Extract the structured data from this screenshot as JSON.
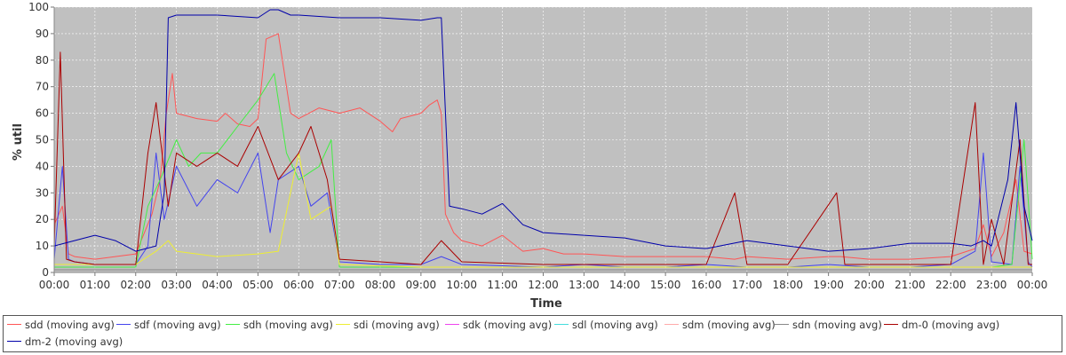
{
  "chart_data": {
    "type": "line",
    "title": "",
    "xlabel": "Time",
    "ylabel": "% util",
    "ylim": [
      0,
      100
    ],
    "xlim": [
      0,
      24
    ],
    "y_ticks": [
      "0",
      "10",
      "20",
      "30",
      "40",
      "50",
      "60",
      "70",
      "80",
      "90",
      "100"
    ],
    "x_ticks": [
      "00:00",
      "01:00",
      "02:00",
      "03:00",
      "04:00",
      "05:00",
      "06:00",
      "07:00",
      "08:00",
      "09:00",
      "10:00",
      "11:00",
      "12:00",
      "13:00",
      "14:00",
      "15:00",
      "16:00",
      "17:00",
      "18:00",
      "19:00",
      "20:00",
      "21:00",
      "22:00",
      "23:00",
      "00:00"
    ],
    "grid": true,
    "legend_placement": "bottom",
    "plot_background": "#c0c0c0",
    "series": [
      {
        "name": "sdd (moving avg)",
        "color": "#ff5555",
        "x": [
          0,
          0.2,
          0.35,
          0.5,
          1,
          1.5,
          2,
          2.4,
          2.6,
          2.75,
          2.9,
          3,
          3.5,
          4,
          4.2,
          4.5,
          4.8,
          5,
          5.2,
          5.5,
          5.6,
          5.8,
          6,
          6.5,
          7,
          7.5,
          8,
          8.3,
          8.5,
          9,
          9.2,
          9.4,
          9.5,
          9.6,
          9.8,
          10,
          10.5,
          11,
          11.5,
          12,
          12.5,
          13,
          14,
          15,
          16,
          16.7,
          17,
          18,
          19,
          19.3,
          20,
          21,
          22,
          22.6,
          22.8,
          23,
          23.3,
          23.6,
          23.8,
          24
        ],
        "y": [
          18,
          25,
          7,
          6,
          5,
          6,
          7,
          22,
          35,
          60,
          75,
          60,
          58,
          57,
          60,
          56,
          55,
          58,
          88,
          90,
          80,
          60,
          58,
          62,
          60,
          62,
          57,
          53,
          58,
          60,
          63,
          65,
          60,
          22,
          15,
          12,
          10,
          14,
          8,
          9,
          7,
          7,
          6,
          6,
          6,
          5,
          6,
          5,
          6,
          6,
          5,
          5,
          6,
          9,
          18,
          6,
          15,
          35,
          8,
          7
        ]
      },
      {
        "name": "sdf (moving avg)",
        "color": "#4444ee",
        "x": [
          0,
          0.2,
          0.35,
          0.5,
          1,
          2,
          2.3,
          2.5,
          2.7,
          3,
          3.5,
          4,
          4.5,
          5,
          5.3,
          5.5,
          6,
          6.3,
          6.7,
          7,
          8,
          9,
          9.5,
          10,
          12,
          13,
          14,
          15,
          16,
          17,
          18,
          19,
          20,
          21,
          22,
          22.6,
          22.8,
          23,
          23.5,
          23.7,
          23.9,
          24
        ],
        "y": [
          5,
          40,
          5,
          4,
          3,
          3,
          10,
          45,
          20,
          40,
          25,
          35,
          30,
          45,
          15,
          35,
          40,
          25,
          30,
          4,
          3,
          3,
          6,
          3,
          2,
          3,
          2,
          2,
          3,
          2,
          2,
          3,
          2,
          2,
          3,
          8,
          45,
          4,
          3,
          40,
          4,
          2
        ]
      },
      {
        "name": "sdh (moving avg)",
        "color": "#44ee44",
        "x": [
          0,
          2,
          2.3,
          2.6,
          3,
          3.3,
          3.6,
          4,
          4.5,
          5,
          5.4,
          5.7,
          6,
          6.5,
          6.8,
          7,
          8,
          9,
          10,
          12,
          14,
          16,
          18,
          20,
          22,
          23,
          23.5,
          23.8,
          24
        ],
        "y": [
          2,
          2,
          25,
          35,
          50,
          40,
          45,
          45,
          55,
          65,
          75,
          45,
          35,
          40,
          50,
          2,
          2,
          2,
          2,
          2,
          2,
          2,
          2,
          2,
          2,
          2,
          3,
          50,
          5
        ]
      },
      {
        "name": "sdi (moving avg)",
        "color": "#eeee33",
        "x": [
          0,
          2,
          2.5,
          2.8,
          3,
          4,
          5,
          5.5,
          6,
          6.3,
          6.8,
          7,
          9,
          10,
          12,
          14,
          16,
          18,
          20,
          22,
          24
        ],
        "y": [
          3,
          3,
          8,
          12,
          8,
          6,
          7,
          8,
          45,
          20,
          25,
          3,
          2,
          2,
          2,
          2,
          2,
          2,
          2,
          2,
          2
        ]
      },
      {
        "name": "sdk (moving avg)",
        "color": "#ee44ee",
        "x": [
          0,
          24
        ],
        "y": [
          1,
          1
        ]
      },
      {
        "name": "sdl (moving avg)",
        "color": "#44dddd",
        "x": [
          0,
          24
        ],
        "y": [
          1,
          1
        ]
      },
      {
        "name": "sdm (moving avg)",
        "color": "#ffaaaa",
        "x": [
          0,
          24
        ],
        "y": [
          1,
          1
        ]
      },
      {
        "name": "sdn (moving avg)",
        "color": "#888888",
        "x": [
          0,
          24
        ],
        "y": [
          1,
          1
        ]
      },
      {
        "name": "dm-0 (moving avg)",
        "color": "#aa0000",
        "x": [
          0,
          0.15,
          0.3,
          0.5,
          1,
          2,
          2.3,
          2.5,
          2.8,
          3,
          3.5,
          4,
          4.5,
          5,
          5.5,
          6,
          6.3,
          6.7,
          7,
          8,
          9,
          9.5,
          10,
          12,
          14,
          16,
          16.7,
          17,
          18,
          19.2,
          19.4,
          20,
          22,
          22.6,
          22.8,
          23,
          23.3,
          23.7,
          23.9,
          24
        ],
        "y": [
          10,
          83,
          5,
          4,
          3,
          3,
          45,
          64,
          25,
          45,
          40,
          45,
          40,
          55,
          35,
          45,
          55,
          35,
          5,
          4,
          3,
          12,
          4,
          3,
          3,
          3,
          30,
          3,
          3,
          30,
          3,
          3,
          3,
          64,
          3,
          20,
          3,
          50,
          3,
          3
        ]
      },
      {
        "name": "dm-2 (moving avg)",
        "color": "#0000aa",
        "x": [
          0,
          0.5,
          1,
          1.5,
          2,
          2.5,
          2.7,
          2.8,
          3,
          4,
          5,
          5.3,
          5.5,
          5.8,
          6,
          7,
          8,
          9,
          9.4,
          9.5,
          9.7,
          10,
          10.5,
          11,
          11.5,
          12,
          13,
          14,
          15,
          16,
          17,
          18,
          19,
          20,
          21,
          22,
          22.5,
          22.8,
          23,
          23.4,
          23.6,
          23.8,
          24
        ],
        "y": [
          10,
          12,
          14,
          12,
          8,
          10,
          30,
          96,
          97,
          97,
          96,
          99,
          99,
          97,
          97,
          96,
          96,
          95,
          96,
          96,
          25,
          24,
          22,
          26,
          18,
          15,
          14,
          13,
          10,
          9,
          12,
          10,
          8,
          9,
          11,
          11,
          10,
          12,
          10,
          35,
          64,
          25,
          12
        ]
      }
    ]
  },
  "legend": {
    "items": [
      "sdd (moving avg)",
      "sdf (moving avg)",
      "sdh (moving avg)",
      "sdi (moving avg)",
      "sdk (moving avg)",
      "sdl (moving avg)",
      "sdm (moving avg)",
      "sdn (moving avg)",
      "dm-0 (moving avg)",
      "dm-2 (moving avg)"
    ]
  }
}
